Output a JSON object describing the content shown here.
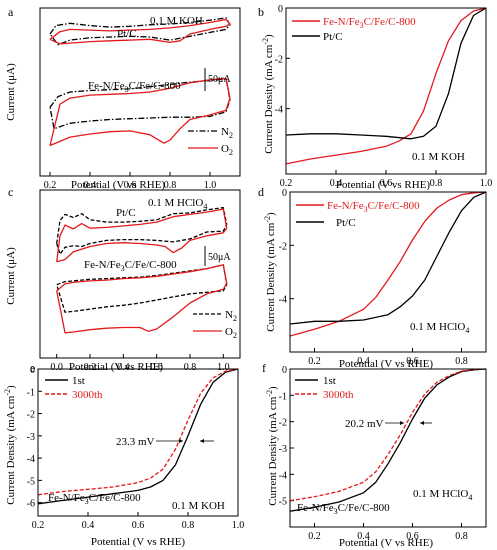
{
  "figure": {
    "panel_letters": [
      "a",
      "b",
      "c",
      "d",
      "e",
      "f"
    ]
  },
  "chart_data": [
    {
      "id": "a",
      "type": "line",
      "xlabel": "Potential (V vs RHE)",
      "ylabel": "Current (μA)",
      "xlim": [
        0.15,
        1.15
      ],
      "ylim": [
        -12,
        10
      ],
      "xticks": [
        0.2,
        0.4,
        0.6,
        0.8,
        1.0
      ],
      "annotations": {
        "condition": "0.1 M KOH",
        "scalebar": "50μA",
        "sample_top": "Pt/C",
        "sample_bottom": "Fe-N/Fe3C/Fe/C-800"
      },
      "legend": [
        {
          "label": "N2",
          "color": "#000000",
          "dash": "dashdot"
        },
        {
          "label": "O2",
          "color": "#e31a1c",
          "dash": "solid"
        }
      ],
      "series": [
        {
          "name": "Pt/C N2",
          "color": "#000000",
          "dash": "dashdot",
          "x": [
            0.2,
            0.23,
            0.3,
            0.4,
            0.5,
            0.6,
            0.7,
            0.8,
            0.9,
            1.0,
            1.08,
            1.1,
            1.08,
            1.0,
            0.9,
            0.8,
            0.7,
            0.6,
            0.5,
            0.4,
            0.3,
            0.24,
            0.2
          ],
          "y": [
            6.6,
            7.7,
            8.0,
            7.7,
            7.5,
            7.6,
            7.8,
            7.9,
            8.1,
            8.4,
            8.7,
            7.8,
            7.2,
            6.8,
            6.3,
            5.8,
            6.2,
            6.3,
            6.2,
            6.1,
            5.8,
            5.2,
            6.6
          ]
        },
        {
          "name": "Pt/C O2",
          "color": "#e31a1c",
          "dash": "solid",
          "x": [
            0.2,
            0.25,
            0.3,
            0.4,
            0.5,
            0.6,
            0.7,
            0.8,
            0.9,
            1.0,
            1.08,
            1.1,
            1.08,
            1.0,
            0.9,
            0.85,
            0.8,
            0.7,
            0.6,
            0.5,
            0.4,
            0.3,
            0.25,
            0.2
          ],
          "y": [
            5.9,
            6.9,
            7.2,
            7.1,
            7.0,
            7.1,
            7.2,
            7.4,
            7.7,
            8.1,
            8.5,
            7.9,
            7.6,
            7.2,
            6.6,
            5.7,
            5.5,
            5.9,
            5.8,
            5.7,
            5.6,
            5.4,
            5.3,
            5.9
          ]
        },
        {
          "name": "Fe-N/Fe3C/Fe/C-800 N2",
          "color": "#000000",
          "dash": "dashdot",
          "x": [
            0.2,
            0.24,
            0.3,
            0.4,
            0.5,
            0.6,
            0.7,
            0.8,
            0.9,
            1.0,
            1.08,
            1.1,
            1.08,
            1.0,
            0.9,
            0.8,
            0.7,
            0.6,
            0.5,
            0.4,
            0.3,
            0.22,
            0.2
          ],
          "y": [
            -3.0,
            -1.6,
            -1.0,
            -0.8,
            -0.7,
            -0.6,
            -0.3,
            0.0,
            0.3,
            0.5,
            0.7,
            -2.0,
            -3.6,
            -4.2,
            -4.3,
            -4.3,
            -4.4,
            -4.5,
            -4.6,
            -4.8,
            -5.1,
            -5.8,
            -3.0
          ]
        },
        {
          "name": "Fe-N/Fe3C/Fe/C-800 O2",
          "color": "#e31a1c",
          "dash": "solid",
          "x": [
            0.2,
            0.25,
            0.3,
            0.4,
            0.5,
            0.6,
            0.7,
            0.8,
            0.9,
            1.0,
            1.08,
            1.1,
            1.08,
            1.0,
            0.9,
            0.85,
            0.8,
            0.77,
            0.7,
            0.6,
            0.5,
            0.4,
            0.3,
            0.22,
            0.2
          ],
          "y": [
            -8.0,
            -2.6,
            -1.8,
            -1.4,
            -1.3,
            -1.2,
            -1.0,
            -0.5,
            0.2,
            0.6,
            0.8,
            -1.8,
            -3.4,
            -4.0,
            -4.6,
            -5.8,
            -7.3,
            -7.7,
            -6.6,
            -6.1,
            -6.2,
            -6.5,
            -6.9,
            -7.8,
            -8.0
          ]
        }
      ]
    },
    {
      "id": "b",
      "type": "line",
      "xlabel": "Potential (V vs RHE)",
      "ylabel": "Current Density (mA cm⁻²)",
      "xlim": [
        0.2,
        1.0
      ],
      "ylim": [
        -6.6,
        0
      ],
      "xticks": [
        0.2,
        0.4,
        0.6,
        0.8,
        1.0
      ],
      "yticks": [
        0,
        -2,
        -4
      ],
      "annotations": {
        "condition": "0.1 M KOH"
      },
      "series": [
        {
          "name": "Fe-N/Fe3C/Fe/C-800",
          "color": "#e31a1c",
          "dash": "solid",
          "x": [
            0.2,
            0.3,
            0.4,
            0.5,
            0.6,
            0.65,
            0.7,
            0.75,
            0.8,
            0.85,
            0.9,
            0.95,
            1.0
          ],
          "y": [
            -6.2,
            -6.0,
            -5.85,
            -5.7,
            -5.5,
            -5.3,
            -5.0,
            -4.1,
            -2.6,
            -1.3,
            -0.5,
            -0.12,
            0.0
          ]
        },
        {
          "name": "Pt/C",
          "color": "#000000",
          "dash": "solid",
          "x": [
            0.2,
            0.3,
            0.4,
            0.5,
            0.6,
            0.7,
            0.75,
            0.8,
            0.85,
            0.88,
            0.9,
            0.95,
            1.0
          ],
          "y": [
            -5.05,
            -5.0,
            -5.0,
            -5.05,
            -5.1,
            -5.2,
            -5.1,
            -4.7,
            -3.4,
            -2.2,
            -1.4,
            -0.3,
            0.0
          ]
        }
      ]
    },
    {
      "id": "c",
      "type": "line",
      "xlabel": "Potential (V vs RHE)",
      "ylabel": "Current (μA)",
      "xlim": [
        -0.1,
        1.1
      ],
      "ylim": [
        -12,
        10
      ],
      "xticks": [
        0.0,
        0.2,
        0.4,
        0.6,
        0.8,
        1.0
      ],
      "annotations": {
        "condition": "0.1 M HClO4",
        "scalebar": "50μA",
        "sample_top": "Pt/C",
        "sample_bottom": "Fe-N/Fe3C/Fe/C-800"
      },
      "legend": [
        {
          "label": "N2",
          "color": "#000000",
          "dash": "dash"
        },
        {
          "label": "O2",
          "color": "#e31a1c",
          "dash": "solid"
        }
      ],
      "series": [
        {
          "name": "Pt/C N2",
          "color": "#000000",
          "dash": "dash",
          "x": [
            0.0,
            0.02,
            0.05,
            0.1,
            0.15,
            0.2,
            0.3,
            0.4,
            0.5,
            0.6,
            0.7,
            0.8,
            0.9,
            1.0,
            1.02,
            1.0,
            0.9,
            0.8,
            0.7,
            0.6,
            0.5,
            0.4,
            0.3,
            0.2,
            0.15,
            0.1,
            0.05,
            0.02,
            0.0
          ],
          "y": [
            3.0,
            6.0,
            6.8,
            6.4,
            6.9,
            6.1,
            5.8,
            5.8,
            5.9,
            6.1,
            6.9,
            7.0,
            7.4,
            7.7,
            5.5,
            4.6,
            4.5,
            3.6,
            3.2,
            3.4,
            3.5,
            3.5,
            3.4,
            3.0,
            2.6,
            2.7,
            2.5,
            1.6,
            3.0
          ]
        },
        {
          "name": "Pt/C O2",
          "color": "#e31a1c",
          "dash": "solid",
          "x": [
            0.0,
            0.02,
            0.05,
            0.1,
            0.15,
            0.2,
            0.3,
            0.4,
            0.5,
            0.6,
            0.7,
            0.8,
            0.9,
            1.0,
            1.02,
            1.0,
            0.9,
            0.8,
            0.75,
            0.7,
            0.65,
            0.6,
            0.5,
            0.4,
            0.3,
            0.2,
            0.1,
            0.05,
            0.0
          ],
          "y": [
            0.6,
            4.0,
            5.4,
            4.9,
            5.6,
            5.0,
            5.1,
            5.3,
            5.5,
            5.8,
            6.5,
            6.8,
            7.1,
            7.5,
            5.0,
            4.4,
            4.0,
            3.4,
            2.4,
            1.8,
            2.6,
            2.8,
            3.0,
            3.1,
            3.0,
            2.6,
            1.9,
            0.9,
            0.6
          ]
        },
        {
          "name": "Fe-N/Fe3C/Fe/C-800 N2",
          "color": "#000000",
          "dash": "dash",
          "x": [
            0.0,
            0.05,
            0.1,
            0.2,
            0.3,
            0.4,
            0.5,
            0.6,
            0.7,
            0.8,
            0.9,
            1.0,
            1.02,
            1.0,
            0.9,
            0.8,
            0.7,
            0.6,
            0.5,
            0.4,
            0.3,
            0.2,
            0.1,
            0.05,
            0.0
          ],
          "y": [
            -2.4,
            -2.0,
            -1.9,
            -1.7,
            -1.6,
            -1.5,
            -1.4,
            -1.2,
            -0.9,
            -0.6,
            -0.3,
            0.2,
            -2.4,
            -3.2,
            -3.4,
            -3.6,
            -4.0,
            -4.4,
            -4.8,
            -5.1,
            -5.3,
            -5.6,
            -5.9,
            -6.0,
            -2.4
          ]
        },
        {
          "name": "Fe-N/Fe3C/Fe/C-800 O2",
          "color": "#e31a1c",
          "dash": "solid",
          "x": [
            0.0,
            0.05,
            0.1,
            0.2,
            0.3,
            0.4,
            0.5,
            0.6,
            0.7,
            0.8,
            0.9,
            1.0,
            1.02,
            1.0,
            0.9,
            0.8,
            0.7,
            0.6,
            0.55,
            0.5,
            0.4,
            0.3,
            0.2,
            0.1,
            0.05,
            0.0
          ],
          "y": [
            -3.2,
            -2.3,
            -2.1,
            -1.9,
            -1.8,
            -1.6,
            -1.5,
            -1.3,
            -1.0,
            -0.7,
            -0.3,
            0.2,
            -2.2,
            -3.0,
            -3.6,
            -4.8,
            -6.6,
            -8.2,
            -8.5,
            -8.0,
            -8.0,
            -8.1,
            -8.3,
            -8.6,
            -8.7,
            -3.2
          ]
        }
      ]
    },
    {
      "id": "d",
      "type": "line",
      "xlabel": "Potential (V vs RHE)",
      "ylabel": "Current Density (mA cm⁻²)",
      "xlim": [
        0.1,
        0.9
      ],
      "ylim": [
        -6.0,
        0
      ],
      "xticks": [
        0.2,
        0.4,
        0.6,
        0.8
      ],
      "yticks": [
        0,
        -2,
        -4
      ],
      "annotations": {
        "condition": "0.1 M HClO4"
      },
      "series": [
        {
          "name": "Fe-N/Fe3C/Fe/C-800",
          "color": "#e31a1c",
          "dash": "solid",
          "x": [
            0.1,
            0.2,
            0.3,
            0.4,
            0.45,
            0.5,
            0.55,
            0.6,
            0.65,
            0.7,
            0.75,
            0.8,
            0.85,
            0.9
          ],
          "y": [
            -5.4,
            -5.15,
            -4.85,
            -4.4,
            -3.95,
            -3.3,
            -2.6,
            -1.8,
            -1.1,
            -0.6,
            -0.3,
            -0.1,
            -0.03,
            0.0
          ]
        },
        {
          "name": "Pt/C",
          "color": "#000000",
          "dash": "solid",
          "x": [
            0.1,
            0.2,
            0.3,
            0.4,
            0.5,
            0.55,
            0.6,
            0.65,
            0.7,
            0.75,
            0.8,
            0.85,
            0.9
          ],
          "y": [
            -4.95,
            -4.85,
            -4.85,
            -4.8,
            -4.6,
            -4.3,
            -3.9,
            -3.3,
            -2.4,
            -1.5,
            -0.7,
            -0.2,
            0.0
          ]
        }
      ]
    },
    {
      "id": "e",
      "type": "line",
      "xlabel": "Potential (V vs RHE)",
      "ylabel": "Current Density (mA cm⁻²)",
      "xlim": [
        0.2,
        1.0
      ],
      "ylim": [
        -6.6,
        0
      ],
      "xticks": [
        0.2,
        0.4,
        0.6,
        0.8,
        1.0
      ],
      "yticks": [
        0,
        -1,
        -2,
        -3,
        -4,
        -5,
        -6
      ],
      "annotations": {
        "condition": "0.1 M KOH",
        "sample": "Fe-N/Fe3C/Fe/C-800",
        "shift": "23.3 mV"
      },
      "series": [
        {
          "name": "1st",
          "color": "#000000",
          "dash": "solid",
          "x": [
            0.2,
            0.3,
            0.4,
            0.5,
            0.6,
            0.65,
            0.7,
            0.75,
            0.8,
            0.85,
            0.9,
            0.95,
            1.0
          ],
          "y": [
            -6.05,
            -5.9,
            -5.75,
            -5.6,
            -5.45,
            -5.3,
            -5.0,
            -4.3,
            -3.0,
            -1.6,
            -0.6,
            -0.15,
            0.0
          ]
        },
        {
          "name": "3000th",
          "color": "#e31a1c",
          "dash": "dash",
          "x": [
            0.2,
            0.3,
            0.4,
            0.5,
            0.6,
            0.65,
            0.7,
            0.75,
            0.8,
            0.85,
            0.9,
            0.95,
            1.0
          ],
          "y": [
            -5.65,
            -5.5,
            -5.4,
            -5.3,
            -5.1,
            -4.9,
            -4.5,
            -3.6,
            -2.3,
            -1.1,
            -0.4,
            -0.1,
            0.0
          ]
        }
      ]
    },
    {
      "id": "f",
      "type": "line",
      "xlabel": "Potential (V vs RHE)",
      "ylabel": "Current Density (mA cm⁻²)",
      "xlim": [
        0.1,
        0.9
      ],
      "ylim": [
        -6.0,
        0
      ],
      "xticks": [
        0.2,
        0.4,
        0.6,
        0.8
      ],
      "yticks": [
        0,
        -1,
        -2,
        -3,
        -4,
        -5
      ],
      "annotations": {
        "condition": "0.1 M HClO4",
        "sample": "Fe-N/Fe3C/Fe/C-800",
        "shift": "20.2 mV"
      },
      "series": [
        {
          "name": "1st",
          "color": "#000000",
          "dash": "solid",
          "x": [
            0.1,
            0.2,
            0.3,
            0.4,
            0.45,
            0.5,
            0.55,
            0.6,
            0.65,
            0.7,
            0.75,
            0.8,
            0.85,
            0.9
          ],
          "y": [
            -5.4,
            -5.25,
            -5.05,
            -4.7,
            -4.3,
            -3.6,
            -2.8,
            -1.9,
            -1.1,
            -0.6,
            -0.3,
            -0.1,
            -0.03,
            0.0
          ]
        },
        {
          "name": "3000th",
          "color": "#e31a1c",
          "dash": "dash",
          "x": [
            0.1,
            0.2,
            0.3,
            0.4,
            0.45,
            0.5,
            0.55,
            0.6,
            0.65,
            0.7,
            0.75,
            0.8,
            0.85,
            0.9
          ],
          "y": [
            -5.0,
            -4.85,
            -4.65,
            -4.3,
            -3.9,
            -3.25,
            -2.5,
            -1.65,
            -0.95,
            -0.5,
            -0.25,
            -0.08,
            -0.02,
            0.0
          ]
        }
      ]
    }
  ]
}
